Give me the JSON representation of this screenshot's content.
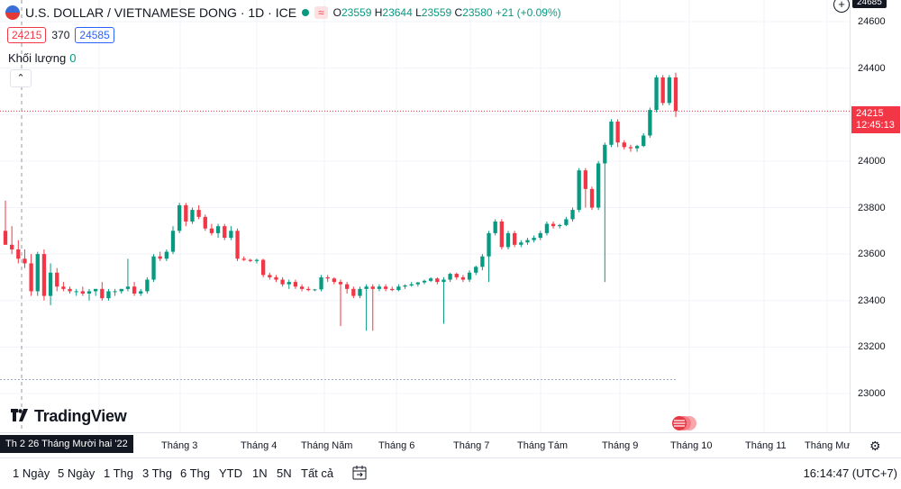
{
  "legend": {
    "symbol": "U.S. DOLLAR / VIETNAMESE DONG · 1D · ICE",
    "wave_icon": "≈",
    "o_label": "O",
    "o": "23559",
    "h_label": "H",
    "h": "23644",
    "l_label": "L",
    "l": "23559",
    "c_label": "C",
    "c": "23580",
    "change": "+21 (+0.09%)",
    "colors": {
      "up": "#089981",
      "down": "#f23645"
    }
  },
  "price_boxes": {
    "bid": "24215",
    "spread": "370",
    "ask": "24585"
  },
  "volume": {
    "label": "Khối lượng",
    "value": "0"
  },
  "price_axis": {
    "ticks": [
      "24600",
      "24400",
      "24200",
      "24000",
      "23800",
      "23600",
      "23400",
      "23200",
      "23000"
    ],
    "high_badge": "24685",
    "current_price": "24215",
    "countdown": "12:45:13"
  },
  "time_axis": {
    "crosshair_date": "Th 2 26 Tháng Mười hai '22",
    "months": [
      "Tháng 3",
      "Tháng 4",
      "Tháng Năm",
      "Tháng 6",
      "Tháng 7",
      "Tháng Tám",
      "Tháng 9",
      "Tháng 10",
      "Tháng 11",
      "Tháng Mười"
    ]
  },
  "logo": {
    "text": "TradingView"
  },
  "bottom_bar": {
    "ranges": [
      "1 Ngày",
      "5 Ngày",
      "1 Thg",
      "3 Thg",
      "6 Thg",
      "YTD",
      "1N",
      "5N",
      "Tất cả"
    ],
    "clock": "16:14:47 (UTC+7)"
  },
  "chart_data": {
    "type": "candlestick",
    "ylim": [
      22850,
      24700
    ],
    "y_ticks": [
      23000,
      23200,
      23400,
      23600,
      23800,
      24000,
      24200,
      24400,
      24600
    ],
    "current_price": 24215,
    "reference_price": 23060,
    "candles": [
      [
        23700,
        23830,
        23640,
        23640
      ],
      [
        23640,
        23720,
        23600,
        23620
      ],
      [
        23620,
        23660,
        23560,
        23580
      ],
      [
        23580,
        23620,
        23540,
        23560
      ],
      [
        23560,
        23600,
        23420,
        23440
      ],
      [
        23440,
        23610,
        23420,
        23600
      ],
      [
        23600,
        23620,
        23400,
        23420
      ],
      [
        23420,
        23560,
        23380,
        23520
      ],
      [
        23520,
        23540,
        23440,
        23460
      ],
      [
        23460,
        23480,
        23440,
        23450
      ],
      [
        23450,
        23460,
        23430,
        23440
      ],
      [
        23440,
        23450,
        23420,
        23440
      ],
      [
        23440,
        23460,
        23420,
        23430
      ],
      [
        23430,
        23450,
        23400,
        23440
      ],
      [
        23440,
        23450,
        23420,
        23450
      ],
      [
        23450,
        23480,
        23400,
        23410
      ],
      [
        23410,
        23450,
        23400,
        23440
      ],
      [
        23440,
        23450,
        23420,
        23440
      ],
      [
        23440,
        23450,
        23430,
        23450
      ],
      [
        23450,
        23580,
        23440,
        23460
      ],
      [
        23460,
        23480,
        23420,
        23430
      ],
      [
        23430,
        23450,
        23420,
        23440
      ],
      [
        23440,
        23500,
        23430,
        23490
      ],
      [
        23490,
        23600,
        23480,
        23590
      ],
      [
        23590,
        23610,
        23570,
        23580
      ],
      [
        23580,
        23620,
        23570,
        23610
      ],
      [
        23610,
        23720,
        23600,
        23700
      ],
      [
        23700,
        23820,
        23690,
        23810
      ],
      [
        23810,
        23820,
        23720,
        23740
      ],
      [
        23740,
        23800,
        23730,
        23790
      ],
      [
        23790,
        23810,
        23750,
        23760
      ],
      [
        23760,
        23770,
        23700,
        23710
      ],
      [
        23710,
        23730,
        23680,
        23690
      ],
      [
        23690,
        23730,
        23670,
        23720
      ],
      [
        23720,
        23730,
        23660,
        23670
      ],
      [
        23670,
        23720,
        23660,
        23700
      ],
      [
        23700,
        23710,
        23570,
        23580
      ],
      [
        23580,
        23590,
        23570,
        23575
      ],
      [
        23575,
        23580,
        23565,
        23570
      ],
      [
        23570,
        23580,
        23560,
        23575
      ],
      [
        23575,
        23580,
        23500,
        23510
      ],
      [
        23510,
        23520,
        23490,
        23500
      ],
      [
        23500,
        23510,
        23480,
        23490
      ],
      [
        23490,
        23500,
        23460,
        23470
      ],
      [
        23470,
        23490,
        23450,
        23480
      ],
      [
        23480,
        23490,
        23450,
        23460
      ],
      [
        23460,
        23470,
        23440,
        23450
      ],
      [
        23450,
        23460,
        23440,
        23445
      ],
      [
        23445,
        23450,
        23440,
        23448
      ],
      [
        23448,
        23510,
        23440,
        23500
      ],
      [
        23500,
        23510,
        23480,
        23495
      ],
      [
        23495,
        23500,
        23470,
        23480
      ],
      [
        23480,
        23490,
        23290,
        23470
      ],
      [
        23470,
        23480,
        23430,
        23450
      ],
      [
        23450,
        23460,
        23410,
        23420
      ],
      [
        23420,
        23460,
        23410,
        23450
      ],
      [
        23450,
        23470,
        23270,
        23460
      ],
      [
        23460,
        23470,
        23270,
        23450
      ],
      [
        23450,
        23470,
        23440,
        23460
      ],
      [
        23460,
        23470,
        23440,
        23450
      ],
      [
        23450,
        23460,
        23440,
        23445
      ],
      [
        23445,
        23470,
        23440,
        23460
      ],
      [
        23460,
        23470,
        23450,
        23465
      ],
      [
        23465,
        23480,
        23460,
        23470
      ],
      [
        23470,
        23480,
        23460,
        23478
      ],
      [
        23478,
        23490,
        23470,
        23485
      ],
      [
        23485,
        23500,
        23480,
        23495
      ],
      [
        23495,
        23500,
        23470,
        23480
      ],
      [
        23480,
        23500,
        23300,
        23490
      ],
      [
        23490,
        23520,
        23480,
        23515
      ],
      [
        23515,
        23520,
        23490,
        23500
      ],
      [
        23500,
        23510,
        23480,
        23490
      ],
      [
        23490,
        23530,
        23480,
        23520
      ],
      [
        23520,
        23550,
        23510,
        23545
      ],
      [
        23545,
        23600,
        23530,
        23590
      ],
      [
        23590,
        23700,
        23480,
        23690
      ],
      [
        23690,
        23750,
        23680,
        23740
      ],
      [
        23740,
        23750,
        23620,
        23630
      ],
      [
        23630,
        23700,
        23620,
        23690
      ],
      [
        23690,
        23700,
        23630,
        23640
      ],
      [
        23640,
        23660,
        23630,
        23650
      ],
      [
        23650,
        23670,
        23640,
        23660
      ],
      [
        23660,
        23680,
        23650,
        23670
      ],
      [
        23670,
        23700,
        23660,
        23690
      ],
      [
        23690,
        23740,
        23680,
        23730
      ],
      [
        23730,
        23740,
        23710,
        23720
      ],
      [
        23720,
        23730,
        23710,
        23725
      ],
      [
        23725,
        23760,
        23720,
        23750
      ],
      [
        23750,
        23800,
        23740,
        23790
      ],
      [
        23790,
        23970,
        23780,
        23960
      ],
      [
        23960,
        23970,
        23800,
        23880
      ],
      [
        23880,
        23890,
        23790,
        23800
      ],
      [
        23800,
        24000,
        23790,
        23990
      ],
      [
        23990,
        24080,
        23480,
        24070
      ],
      [
        24070,
        24180,
        24060,
        24170
      ],
      [
        24170,
        24180,
        24060,
        24080
      ],
      [
        24080,
        24090,
        24050,
        24060
      ],
      [
        24060,
        24070,
        24040,
        24055
      ],
      [
        24055,
        24070,
        24040,
        24065
      ],
      [
        24065,
        24120,
        24060,
        24110
      ],
      [
        24110,
        24230,
        24100,
        24220
      ],
      [
        24220,
        24370,
        24210,
        24360
      ],
      [
        24360,
        24370,
        24240,
        24250
      ],
      [
        24250,
        24370,
        24240,
        24360
      ],
      [
        24360,
        24380,
        24190,
        24215
      ]
    ]
  }
}
